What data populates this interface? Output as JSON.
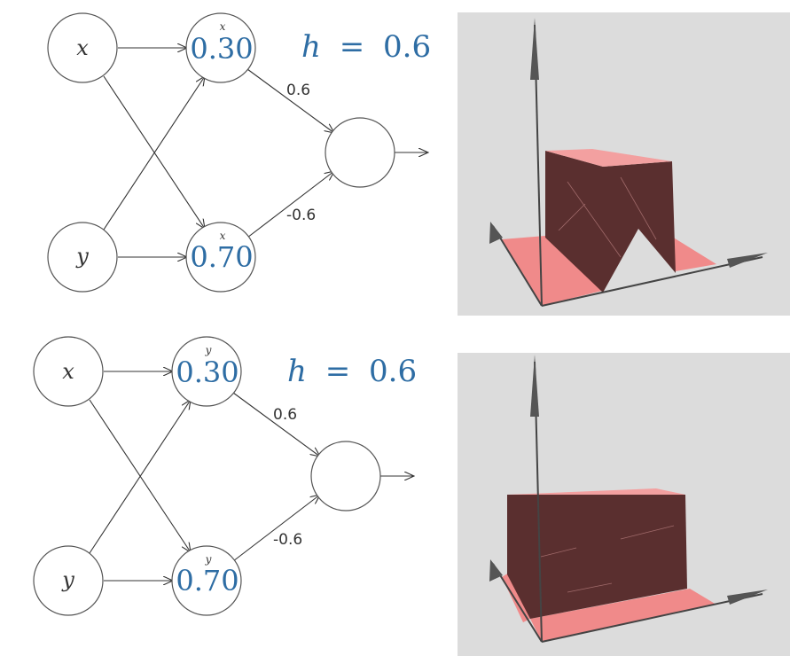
{
  "panels": [
    {
      "id": "top",
      "inputs": [
        "x",
        "y"
      ],
      "hidden": [
        {
          "value": "0.30",
          "superscript": "x"
        },
        {
          "value": "0.70",
          "superscript": "x"
        }
      ],
      "output_weights": [
        "0.6",
        "-0.6"
      ],
      "h_label": "h",
      "h_equals": "=",
      "h_value": "0.6",
      "surface": "step-along-x"
    },
    {
      "id": "bottom",
      "inputs": [
        "x",
        "y"
      ],
      "hidden": [
        {
          "value": "0.30",
          "superscript": "y"
        },
        {
          "value": "0.70",
          "superscript": "y"
        }
      ],
      "output_weights": [
        "0.6",
        "-0.6"
      ],
      "h_label": "h",
      "h_equals": "=",
      "h_value": "0.6",
      "surface": "step-along-y"
    }
  ],
  "colors": {
    "value_blue": "#2e6da4",
    "plot_background": "#dcdcdc",
    "surface_dark": "#5a2f2f",
    "surface_pink": "#f08a8a",
    "axis": "#444444"
  }
}
